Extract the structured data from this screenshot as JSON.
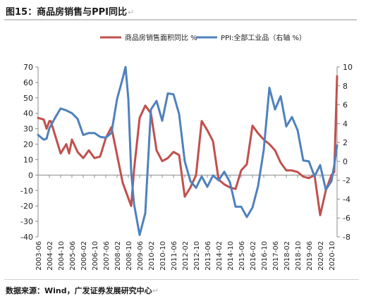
{
  "figure": {
    "title": "图15：商品房销售与PPI同比",
    "source": "数据来源：Wind，广发证券发展研究中心"
  },
  "colors": {
    "sales": "#c0504d",
    "ppi": "#4f81bd"
  },
  "chart_data": {
    "type": "line",
    "title": "",
    "xlabel": "",
    "x_tick_labels": [
      "2003-06",
      "2004-02",
      "2004-10",
      "2005-06",
      "2006-02",
      "2006-10",
      "2007-06",
      "2008-02",
      "2008-10",
      "2009-06",
      "2010-02",
      "2010-10",
      "2011-06",
      "2012-02",
      "2012-10",
      "2013-06",
      "2014-02",
      "2014-10",
      "2015-06",
      "2016-02",
      "2016-10",
      "2017-06",
      "2018-02",
      "2018-10",
      "2019-06",
      "2020-02",
      "2020-10"
    ],
    "y_left": {
      "label": "",
      "ylim": [
        -40,
        70
      ],
      "ticks": [
        -40,
        -30,
        -20,
        -10,
        0,
        10,
        20,
        30,
        40,
        50,
        60,
        70
      ]
    },
    "y_right": {
      "label": "",
      "ylim": [
        -8,
        10
      ],
      "ticks": [
        -8,
        -6,
        -4,
        -2,
        0,
        2,
        4,
        6,
        8,
        10
      ]
    },
    "legend": {
      "placement": "top"
    },
    "grid": false,
    "series": [
      {
        "name": "商品房销售面积同比 %",
        "axis": "left",
        "points": [
          [
            "2003-06",
            37
          ],
          [
            "2003-10",
            36
          ],
          [
            "2003-12",
            30
          ],
          [
            "2004-02",
            35
          ],
          [
            "2004-03",
            35
          ],
          [
            "2004-06",
            26
          ],
          [
            "2004-10",
            14
          ],
          [
            "2005-02",
            20
          ],
          [
            "2005-04",
            14
          ],
          [
            "2005-06",
            23
          ],
          [
            "2005-10",
            15
          ],
          [
            "2006-02",
            11
          ],
          [
            "2006-06",
            16
          ],
          [
            "2006-10",
            11
          ],
          [
            "2007-02",
            12
          ],
          [
            "2007-06",
            24
          ],
          [
            "2007-10",
            31
          ],
          [
            "2008-02",
            13
          ],
          [
            "2008-06",
            -5
          ],
          [
            "2008-10",
            -15
          ],
          [
            "2008-12",
            -20
          ],
          [
            "2009-02",
            3
          ],
          [
            "2009-06",
            37
          ],
          [
            "2009-10",
            45
          ],
          [
            "2010-02",
            40
          ],
          [
            "2010-06",
            16
          ],
          [
            "2010-10",
            9
          ],
          [
            "2011-02",
            11
          ],
          [
            "2011-06",
            15
          ],
          [
            "2011-10",
            13
          ],
          [
            "2012-02",
            -14
          ],
          [
            "2012-06",
            -8
          ],
          [
            "2012-10",
            0
          ],
          [
            "2013-02",
            35
          ],
          [
            "2013-06",
            29
          ],
          [
            "2013-10",
            22
          ],
          [
            "2014-02",
            -3
          ],
          [
            "2014-06",
            -6
          ],
          [
            "2014-10",
            -8
          ],
          [
            "2015-02",
            -9
          ],
          [
            "2015-06",
            3
          ],
          [
            "2015-10",
            7
          ],
          [
            "2016-02",
            32
          ],
          [
            "2016-06",
            27
          ],
          [
            "2016-10",
            23
          ],
          [
            "2017-02",
            20
          ],
          [
            "2017-06",
            16
          ],
          [
            "2017-10",
            8
          ],
          [
            "2018-02",
            3
          ],
          [
            "2018-06",
            3
          ],
          [
            "2018-10",
            2
          ],
          [
            "2019-02",
            -1
          ],
          [
            "2019-06",
            -2
          ],
          [
            "2019-10",
            0
          ],
          [
            "2020-02",
            -26
          ],
          [
            "2020-06",
            -10
          ],
          [
            "2020-10",
            0
          ],
          [
            "2020-12",
            2
          ],
          [
            "2021-02",
            64
          ]
        ]
      },
      {
        "name": "PPI:全部工业品（右轴 %）",
        "axis": "right",
        "points": [
          [
            "2003-06",
            2.8
          ],
          [
            "2003-10",
            2.3
          ],
          [
            "2003-12",
            2.4
          ],
          [
            "2004-02",
            3.5
          ],
          [
            "2004-06",
            4.6
          ],
          [
            "2004-10",
            5.6
          ],
          [
            "2005-02",
            5.4
          ],
          [
            "2005-06",
            5.1
          ],
          [
            "2005-10",
            4.5
          ],
          [
            "2006-02",
            2.8
          ],
          [
            "2006-06",
            3.0
          ],
          [
            "2006-10",
            3.0
          ],
          [
            "2007-02",
            2.6
          ],
          [
            "2007-06",
            2.5
          ],
          [
            "2007-10",
            3.0
          ],
          [
            "2008-02",
            6.6
          ],
          [
            "2008-06",
            8.8
          ],
          [
            "2008-08",
            10.0
          ],
          [
            "2008-10",
            6.6
          ],
          [
            "2008-12",
            -1.1
          ],
          [
            "2009-02",
            -4.5
          ],
          [
            "2009-06",
            -7.8
          ],
          [
            "2009-10",
            -5.5
          ],
          [
            "2010-02",
            5.5
          ],
          [
            "2010-06",
            6.4
          ],
          [
            "2010-10",
            4.3
          ],
          [
            "2011-02",
            7.2
          ],
          [
            "2011-06",
            7.1
          ],
          [
            "2011-10",
            5.0
          ],
          [
            "2012-02",
            0.0
          ],
          [
            "2012-06",
            -2.1
          ],
          [
            "2012-10",
            -2.8
          ],
          [
            "2013-02",
            -1.6
          ],
          [
            "2013-06",
            -2.7
          ],
          [
            "2013-10",
            -1.5
          ],
          [
            "2014-02",
            -2.0
          ],
          [
            "2014-06",
            -1.1
          ],
          [
            "2014-10",
            -2.2
          ],
          [
            "2015-02",
            -4.8
          ],
          [
            "2015-06",
            -4.8
          ],
          [
            "2015-10",
            -5.9
          ],
          [
            "2016-02",
            -4.9
          ],
          [
            "2016-06",
            -2.6
          ],
          [
            "2016-10",
            1.2
          ],
          [
            "2017-02",
            7.8
          ],
          [
            "2017-06",
            5.5
          ],
          [
            "2017-10",
            6.9
          ],
          [
            "2018-02",
            3.7
          ],
          [
            "2018-06",
            4.7
          ],
          [
            "2018-10",
            3.3
          ],
          [
            "2019-02",
            0.1
          ],
          [
            "2019-06",
            0.0
          ],
          [
            "2019-10",
            -1.6
          ],
          [
            "2020-02",
            -0.4
          ],
          [
            "2020-06",
            -3.0
          ],
          [
            "2020-10",
            -2.1
          ],
          [
            "2020-12",
            -0.4
          ],
          [
            "2021-02",
            1.7
          ]
        ]
      }
    ]
  }
}
